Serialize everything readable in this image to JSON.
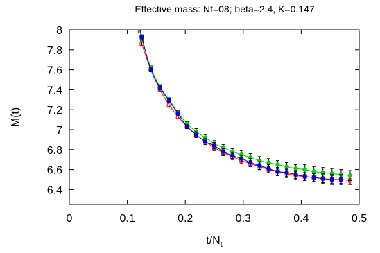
{
  "chart_data": {
    "type": "scatter",
    "title": "Effective mass: Nf=08; beta=2.4, K=0.147",
    "xlabel": "t/N",
    "xlabel_sub": "t",
    "ylabel": "M(t)",
    "xlim": [
      0,
      0.5
    ],
    "ylim": [
      6.25,
      8.0
    ],
    "xticks": [
      "0",
      "0.1",
      "0.2",
      "0.3",
      "0.4",
      "0.5"
    ],
    "yticks": [
      "6.4",
      "6.6",
      "6.8",
      "7",
      "7.2",
      "7.4",
      "7.6",
      "7.8",
      "8"
    ],
    "grid": false,
    "legend": "none",
    "series": [
      {
        "color": "#ff0000",
        "marker": "square",
        "x": [
          0.125,
          0.1406,
          0.1563,
          0.1719,
          0.1875,
          0.2031,
          0.2188,
          0.2344,
          0.25,
          0.2656,
          0.2813,
          0.2969,
          0.3125,
          0.3281,
          0.3438,
          0.3594,
          0.375,
          0.3906,
          0.4063,
          0.4219,
          0.4375,
          0.4531,
          0.4688,
          0.4844
        ],
        "y": [
          7.86,
          7.6,
          7.4,
          7.25,
          7.13,
          7.03,
          6.95,
          6.88,
          6.82,
          6.77,
          6.73,
          6.69,
          6.66,
          6.63,
          6.6,
          6.58,
          6.56,
          6.54,
          6.53,
          6.52,
          6.51,
          6.5,
          6.5,
          6.49
        ],
        "err": [
          0.02,
          0.02,
          0.02,
          0.02,
          0.02,
          0.02,
          0.02,
          0.02,
          0.03,
          0.03,
          0.03,
          0.03,
          0.03,
          0.03,
          0.03,
          0.04,
          0.04,
          0.04,
          0.04,
          0.04,
          0.04,
          0.04,
          0.04,
          0.04
        ]
      },
      {
        "color": "#00cc00",
        "marker": "circle",
        "x": [
          0.125,
          0.1406,
          0.1563,
          0.1719,
          0.1875,
          0.2031,
          0.2188,
          0.2344,
          0.25,
          0.2656,
          0.2813,
          0.2969,
          0.3125,
          0.3281,
          0.3438,
          0.3594,
          0.375,
          0.3906,
          0.4063,
          0.4219,
          0.4375,
          0.4531,
          0.4688,
          0.4844
        ],
        "y": [
          7.91,
          7.62,
          7.43,
          7.3,
          7.17,
          7.06,
          6.98,
          6.92,
          6.86,
          6.82,
          6.78,
          6.75,
          6.72,
          6.69,
          6.67,
          6.65,
          6.63,
          6.61,
          6.6,
          6.58,
          6.57,
          6.56,
          6.55,
          6.54
        ],
        "err": [
          0.02,
          0.02,
          0.02,
          0.02,
          0.02,
          0.02,
          0.03,
          0.03,
          0.03,
          0.03,
          0.03,
          0.04,
          0.04,
          0.04,
          0.04,
          0.04,
          0.04,
          0.04,
          0.05,
          0.05,
          0.05,
          0.05,
          0.05,
          0.05
        ]
      },
      {
        "color": "#0000cc",
        "marker": "circle",
        "x": [
          0.125,
          0.1406,
          0.1563,
          0.1719,
          0.1875,
          0.2031,
          0.2188,
          0.2344,
          0.25,
          0.2656,
          0.2813,
          0.2969,
          0.3125,
          0.3281,
          0.3438,
          0.3594,
          0.375,
          0.3906,
          0.4063,
          0.4219,
          0.4375,
          0.4531,
          0.4688
        ],
        "y": [
          7.93,
          7.6,
          7.42,
          7.29,
          7.16,
          7.03,
          6.95,
          6.88,
          6.84,
          6.78,
          6.74,
          6.71,
          6.67,
          6.64,
          6.61,
          6.58,
          6.57,
          6.55,
          6.53,
          6.52,
          6.51,
          6.5,
          6.5
        ],
        "err": [
          0.02,
          0.02,
          0.02,
          0.02,
          0.02,
          0.02,
          0.03,
          0.03,
          0.03,
          0.03,
          0.03,
          0.03,
          0.04,
          0.04,
          0.04,
          0.04,
          0.04,
          0.04,
          0.04,
          0.04,
          0.05,
          0.05,
          0.05
        ]
      }
    ]
  },
  "colors": {
    "red": "#ff0000",
    "green": "#00cc00",
    "blue": "#0000cc",
    "errorbar": "#000000"
  }
}
